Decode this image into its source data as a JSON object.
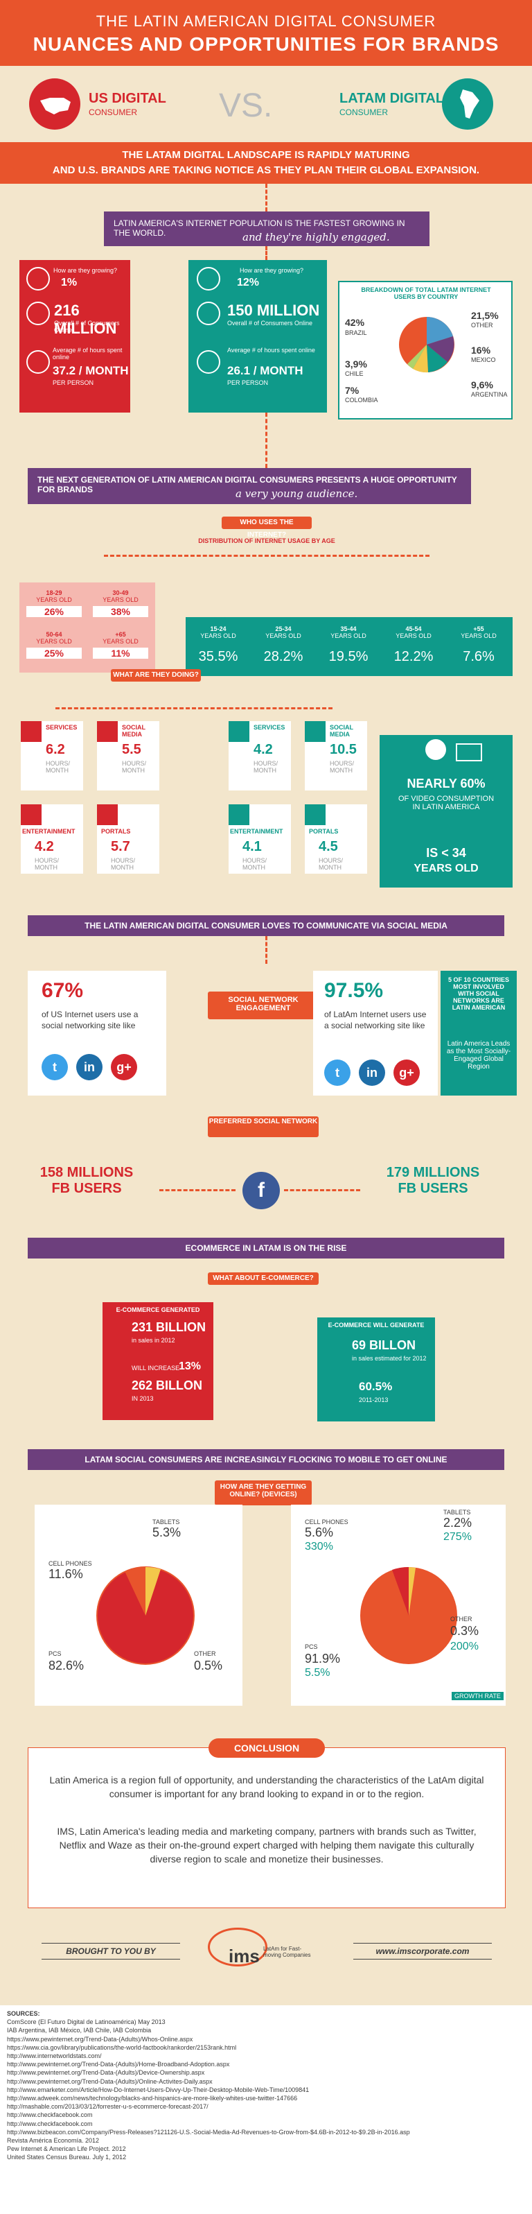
{
  "header": {
    "title_line1": "THE LATIN AMERICAN DIGITAL CONSUMER",
    "title_line2": "NUANCES AND OPPORTUNITIES FOR BRANDS"
  },
  "vs": {
    "us_title": "US DIGITAL",
    "us_sub": "CONSUMER",
    "vs_text": "VS.",
    "latam_title": "LATAM DIGITAL",
    "latam_sub": "CONSUMER"
  },
  "banner": {
    "line1": "THE LATAM DIGITAL LANDSCAPE IS RAPIDLY MATURING",
    "line2": "AND U.S. BRANDS ARE TAKING NOTICE AS THEY PLAN THEIR GLOBAL EXPANSION."
  },
  "section1": {
    "headline": "LATIN AMERICA'S INTERNET POPULATION IS THE FASTEST GROWING IN THE WORLD.",
    "script": "and they're highly engaged.",
    "us": {
      "growing_q": "How are they growing?",
      "growth": "1%",
      "consumers": "216 MILLION",
      "consumers_sub": "Overall # of Consumers Online",
      "hours_label": "Average # of hours spent online",
      "hours": "37.2 / MONTH",
      "hours_sub": "PER PERSON"
    },
    "latam": {
      "growing_q": "How are they growing?",
      "growth": "12%",
      "consumers": "150 MILLION",
      "consumers_sub": "Overall # of Consumers Online",
      "hours_label": "Average # of hours spent online",
      "hours": "26.1 / MONTH",
      "hours_sub": "PER PERSON"
    },
    "breakdown_title": "BREAKDOWN OF TOTAL LATAM INTERNET USERS BY COUNTRY",
    "countries": [
      {
        "pct": "42%",
        "name": "BRAZIL"
      },
      {
        "pct": "3,9%",
        "name": "CHILE"
      },
      {
        "pct": "7%",
        "name": "COLOMBIA"
      },
      {
        "pct": "21,5%",
        "name": "OTHER"
      },
      {
        "pct": "16%",
        "name": "MEXICO"
      },
      {
        "pct": "9,6%",
        "name": "ARGENTINA"
      }
    ]
  },
  "section2": {
    "headline": "THE NEXT GENERATION OF LATIN AMERICAN DIGITAL CONSUMERS PRESENTS A HUGE OPPORTUNITY FOR BRANDS",
    "script": "a very young audience.",
    "who_uses": "WHO USES THE INTERNET?",
    "dist_label": "DISTRIBUTION OF INTERNET USAGE BY AGE",
    "us_ages": [
      {
        "range": "18-29",
        "unit": "YEARS OLD",
        "pct": "26%"
      },
      {
        "range": "30-49",
        "unit": "YEARS OLD",
        "pct": "38%"
      },
      {
        "range": "50-64",
        "unit": "YEARS OLD",
        "pct": "25%"
      },
      {
        "range": "+65",
        "unit": "YEARS OLD",
        "pct": "11%"
      }
    ],
    "latam_ages": [
      {
        "range": "15-24",
        "unit": "YEARS OLD",
        "pct": "35.5%"
      },
      {
        "range": "25-34",
        "unit": "YEARS OLD",
        "pct": "28.2%"
      },
      {
        "range": "35-44",
        "unit": "YEARS OLD",
        "pct": "19.5%"
      },
      {
        "range": "45-54",
        "unit": "YEARS OLD",
        "pct": "12.2%"
      },
      {
        "range": "+55",
        "unit": "YEARS OLD",
        "pct": "7.6%"
      }
    ],
    "what_doing": "WHAT ARE THEY DOING?",
    "hours_unit": "HOURS/ MONTH",
    "us_activities": [
      {
        "name": "SERVICES",
        "value": "6.2"
      },
      {
        "name": "SOCIAL MEDIA",
        "value": "5.5"
      },
      {
        "name": "ENTERTAINMENT",
        "value": "4.2"
      },
      {
        "name": "PORTALS",
        "value": "5.7"
      }
    ],
    "latam_activities": [
      {
        "name": "SERVICES",
        "value": "4.2"
      },
      {
        "name": "SOCIAL MEDIA",
        "value": "10.5"
      },
      {
        "name": "ENTERTAINMENT",
        "value": "4.1"
      },
      {
        "name": "PORTALS",
        "value": "4.5"
      }
    ],
    "video_text1": "NEARLY 60%",
    "video_text2": "OF VIDEO CONSUMPTION IN LATIN AMERICA",
    "video_text3": "IS < 34",
    "video_text4": "YEARS OLD"
  },
  "section3": {
    "headline": "THE LATIN AMERICAN DIGITAL CONSUMER LOVES TO COMMUNICATE VIA SOCIAL MEDIA",
    "us_pct": "67%",
    "us_text": "of US Internet users use a social networking site like",
    "engagement_label": "SOCIAL NETWORK ENGAGEMENT",
    "latam_pct": "97.5%",
    "latam_text": "of LatAm Internet users use a social networking site like",
    "side_top": "5 OF 10 COUNTRIES MOST INVOLVED WITH SOCIAL NETWORKS ARE LATIN AMERICAN",
    "side_bottom": "Latin America Leads as the Most Socially-Engaged Global Region",
    "preferred": "PREFERRED SOCIAL NETWORK",
    "us_fb": "158 MILLIONS",
    "us_fb2": "FB USERS",
    "latam_fb": "179 MILLIONS",
    "latam_fb2": "FB USERS",
    "twitter": "t",
    "linkedin": "in",
    "gplus": "g+",
    "facebook": "f"
  },
  "section4": {
    "headline": "ECOMMERCE IN LATAM IS ON THE RISE",
    "what_about": "WHAT ABOUT E-COMMERCE?",
    "us_generated": "E-COMMERCE GENERATED",
    "us_value": "231 BILLION",
    "us_value_sub": "in sales in 2012",
    "us_increase_label": "WILL INCREASE",
    "us_increase": "13%",
    "us_future": "262 BILLON",
    "us_future_sub": "IN 2013",
    "latam_generated": "E-COMMERCE WILL GENERATE",
    "latam_value": "69 BILLON",
    "latam_value_sub": "in sales estimated for 2012",
    "latam_increase": "60.5%",
    "latam_increase_sub": "2011-2013"
  },
  "section5": {
    "headline": "LATAM SOCIAL CONSUMERS ARE INCREASINGLY FLOCKING TO MOBILE TO GET ONLINE",
    "how_getting": "HOW ARE THEY GETTING ONLINE? (DEVICES)",
    "us": [
      {
        "name": "TABLETS",
        "pct": "5.3%"
      },
      {
        "name": "CELL PHONES",
        "pct": "11.6%"
      },
      {
        "name": "PCS",
        "pct": "82.6%"
      },
      {
        "name": "OTHER",
        "pct": "0.5%"
      }
    ],
    "latam": [
      {
        "name": "CELL PHONES",
        "pct": "5.6%",
        "growth": "330%"
      },
      {
        "name": "TABLETS",
        "pct": "2.2%",
        "growth": "275%"
      },
      {
        "name": "PCS",
        "pct": "91.9%",
        "growth": "5.5%"
      },
      {
        "name": "OTHER",
        "pct": "0.3%",
        "growth": "200%"
      }
    ],
    "growth_note": "GROWTH RATE"
  },
  "conclusion": {
    "title": "CONCLUSION",
    "p1": "Latin America is a region full of opportunity, and understanding the characteristics of the LatAm digital consumer is important for any brand looking to expand in or to the region.",
    "p2": "IMS, Latin America's leading media and marketing company, partners with brands such as Twitter, Netflix and Waze as their on-the-ground expert charged with helping them navigate this culturally diverse region to scale and monetize their businesses."
  },
  "footer": {
    "brought": "BROUGHT TO YOU BY",
    "logo": "ims",
    "tagline": "LatAm for Fast-moving Companies",
    "url": "www.imscorporate.com"
  },
  "sources": {
    "title": "SOURCES:",
    "lines": [
      "ComScore (El Futuro Digital de Latinoamérica) May 2013",
      "IAB Argentina, IAB México, IAB Chile, IAB Colombia",
      "https://www.pewinternet.org/Trend-Data-(Adults)/Whos-Online.aspx",
      "https://www.cia.gov/library/publications/the-world-factbook/rankorder/2153rank.html",
      "http://www.internetworldstats.com/",
      "http://www.pewinternet.org/Trend-Data-(Adults)/Home-Broadband-Adoption.aspx",
      "http://www.pewinternet.org/Trend-Data-(Adults)/Device-Ownership.aspx",
      "http://www.pewinternet.org/Trend-Data-(Adults)/Online-Activites-Daily.aspx",
      "http://www.emarketer.com/Article/How-Do-Internet-Users-Divvy-Up-Their-Desktop-Mobile-Web-Time/1009841",
      "http://www.adweek.com/news/technology/blacks-and-hispanics-are-more-likely-whites-use-twitter-147666",
      "http://mashable.com/2013/03/12/forrester-u-s-ecommerce-forecast-2017/",
      "http://www.checkfacebook.com",
      "http://www.checkfacebook.com",
      "http://www.bizbeacon.com/Company/Press-Releases?121126-U.S.-Social-Media-Ad-Revenues-to-Grow-from-$4.6B-in-2012-to-$9.2B-in-2016.asp",
      "Revista América Economía. 2012",
      "Pew Internet & American Life Project. 2012",
      "United States Census Bureau. July 1, 2012"
    ]
  },
  "colors": {
    "orange": "#e8542c",
    "red": "#d5262d",
    "teal": "#0f9a8a",
    "purple": "#6d3f7d",
    "background": "#f3e6cc"
  }
}
